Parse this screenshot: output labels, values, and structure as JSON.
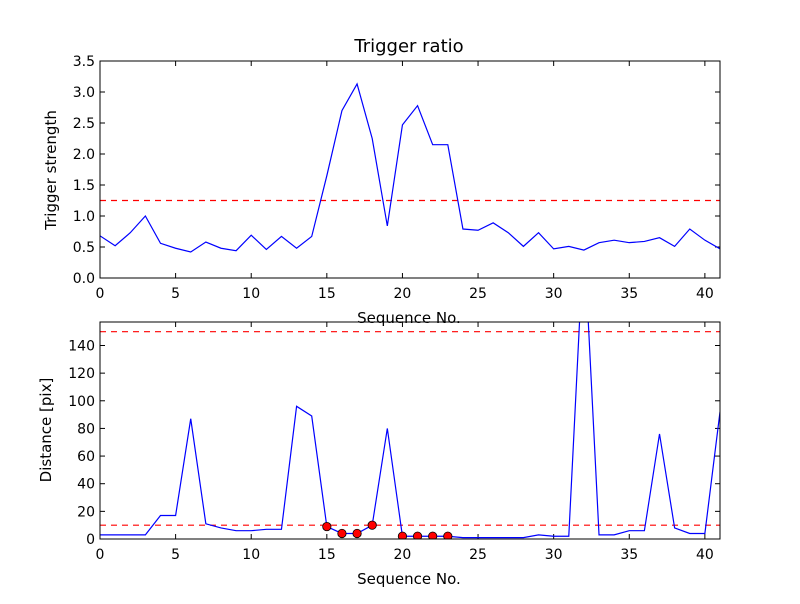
{
  "chart_data": [
    {
      "type": "line",
      "title": "Trigger ratio",
      "xlabel": "Sequence No.",
      "ylabel": "Trigger strength",
      "xlim": [
        0,
        41
      ],
      "ylim": [
        0,
        3.5
      ],
      "xticks": [
        "0",
        "5",
        "10",
        "15",
        "20",
        "25",
        "30",
        "35",
        "40"
      ],
      "yticks": [
        "0.0",
        "0.5",
        "1.0",
        "1.5",
        "2.0",
        "2.5",
        "3.0",
        "3.5"
      ],
      "threshold": 1.25,
      "colors": {
        "line": "#0000ff",
        "threshold": "#ff0000"
      },
      "x": [
        0,
        1,
        2,
        3,
        4,
        5,
        6,
        7,
        8,
        9,
        10,
        11,
        12,
        13,
        14,
        15,
        16,
        17,
        18,
        19,
        20,
        21,
        22,
        23,
        24,
        25,
        26,
        27,
        28,
        29,
        30,
        31,
        32,
        33,
        34,
        35,
        36,
        37,
        38,
        39,
        40,
        41
      ],
      "values": [
        0.68,
        0.52,
        0.73,
        1.0,
        0.56,
        0.48,
        0.42,
        0.58,
        0.48,
        0.44,
        0.69,
        0.46,
        0.67,
        0.48,
        0.67,
        1.65,
        2.7,
        3.13,
        2.25,
        0.84,
        2.47,
        2.78,
        2.15,
        2.15,
        0.79,
        0.77,
        0.89,
        0.73,
        0.51,
        0.73,
        0.47,
        0.51,
        0.45,
        0.57,
        0.61,
        0.57,
        0.59,
        0.65,
        0.51,
        0.79,
        0.61,
        0.47
      ]
    },
    {
      "type": "line",
      "xlabel": "Sequence No.",
      "ylabel": "Distance [pix]",
      "xlim": [
        0,
        41
      ],
      "ylim": [
        0,
        157
      ],
      "xticks": [
        "0",
        "5",
        "10",
        "15",
        "20",
        "25",
        "30",
        "35",
        "40"
      ],
      "yticks": [
        "0",
        "20",
        "40",
        "60",
        "80",
        "100",
        "120",
        "140"
      ],
      "thresholds": [
        10,
        150
      ],
      "colors": {
        "line": "#0000ff",
        "threshold": "#ff0000",
        "marker": "#ff0000"
      },
      "x": [
        0,
        1,
        2,
        3,
        4,
        5,
        6,
        7,
        8,
        9,
        10,
        11,
        12,
        13,
        14,
        15,
        16,
        17,
        18,
        19,
        20,
        21,
        22,
        23,
        24,
        25,
        26,
        27,
        28,
        29,
        30,
        31,
        32,
        33,
        34,
        35,
        36,
        37,
        38,
        39,
        40,
        41
      ],
      "values": [
        3,
        3,
        3,
        3,
        17,
        17,
        87,
        11,
        8,
        6,
        6,
        7,
        7,
        96,
        89,
        9,
        4,
        4,
        10,
        80,
        2,
        2,
        2,
        2,
        1,
        1,
        1,
        1,
        1,
        3,
        2,
        2,
        220,
        3,
        3,
        6,
        6,
        76,
        8,
        4,
        4,
        92
      ],
      "markers": {
        "x": [
          15,
          16,
          17,
          18,
          20,
          21,
          22,
          23
        ],
        "y": [
          9,
          4,
          4,
          10,
          2,
          2,
          2,
          2
        ]
      }
    }
  ]
}
